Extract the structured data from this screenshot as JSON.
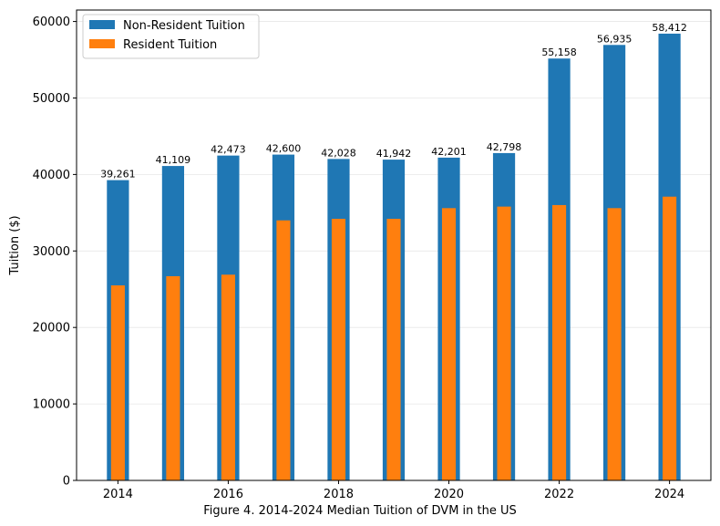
{
  "chart_data": {
    "type": "bar",
    "x": [
      2014,
      2015,
      2016,
      2017,
      2018,
      2019,
      2020,
      2021,
      2022,
      2023,
      2024
    ],
    "series": [
      {
        "name": "Non-Resident Tuition",
        "color": "#1f77b4",
        "values": [
          39261,
          41109,
          42473,
          42600,
          42028,
          41942,
          42201,
          42798,
          55158,
          56935,
          58412
        ],
        "labels": [
          "39,261",
          "41,109",
          "42,473",
          "42,600",
          "42,028",
          "41,942",
          "42,201",
          "42,798",
          "55,158",
          "56,935",
          "58,412"
        ]
      },
      {
        "name": "Resident Tuition",
        "color": "#ff7f0e",
        "values": [
          25500,
          26700,
          26900,
          34000,
          34200,
          34200,
          35600,
          35800,
          36000,
          35600,
          37100
        ]
      }
    ],
    "ylabel": "Tuition ($)",
    "xlabel": "",
    "ylim": [
      0,
      61500
    ],
    "xlim": [
      2013.25,
      2024.75
    ],
    "yticks": [
      0,
      10000,
      20000,
      30000,
      40000,
      50000,
      60000
    ],
    "xticks": [
      2014,
      2016,
      2018,
      2020,
      2022,
      2024
    ],
    "grid": "y",
    "legend": "top-left"
  },
  "caption": "Figure 4. 2014-2024 Median Tuition of DVM in the US"
}
